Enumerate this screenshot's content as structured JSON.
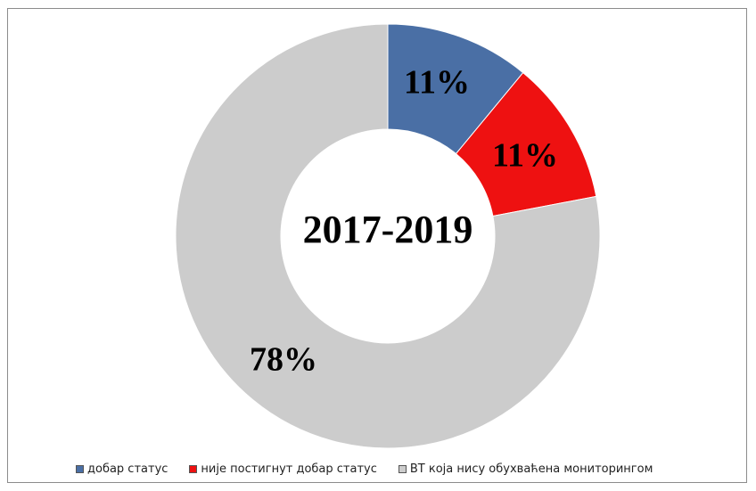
{
  "chart_data": {
    "type": "pie",
    "style": "donut",
    "center_label": "2017-2019",
    "series": [
      {
        "name": "добар статус",
        "value": 11,
        "label": "11%",
        "color": "#4a6fa5"
      },
      {
        "name": "није постигнут добар статус",
        "value": 11,
        "label": "11%",
        "color": "#ee1111"
      },
      {
        "name": "ВТ која нису обухваћена мониторингом",
        "value": 78,
        "label": "78%",
        "color": "#cccccc"
      }
    ],
    "legend_position": "bottom"
  }
}
